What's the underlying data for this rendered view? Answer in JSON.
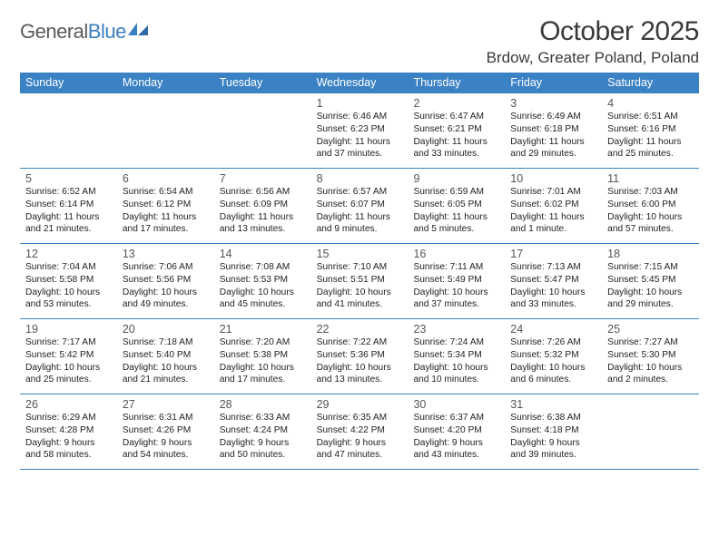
{
  "brand": {
    "part1": "General",
    "part2": "Blue"
  },
  "title": "October 2025",
  "location": "Brdow, Greater Poland, Poland",
  "colors": {
    "header_bg": "#3b82c4",
    "header_text": "#ffffff",
    "rule": "#3b82c4",
    "body_text": "#222222",
    "daynum": "#555555",
    "background": "#ffffff",
    "logo_gray": "#5a5a5a",
    "logo_blue": "#3b7fc4"
  },
  "weekdays": [
    "Sunday",
    "Monday",
    "Tuesday",
    "Wednesday",
    "Thursday",
    "Friday",
    "Saturday"
  ],
  "weeks": [
    [
      null,
      null,
      null,
      {
        "n": "1",
        "sr": "6:46 AM",
        "ss": "6:23 PM",
        "dl": "11 hours and 37 minutes."
      },
      {
        "n": "2",
        "sr": "6:47 AM",
        "ss": "6:21 PM",
        "dl": "11 hours and 33 minutes."
      },
      {
        "n": "3",
        "sr": "6:49 AM",
        "ss": "6:18 PM",
        "dl": "11 hours and 29 minutes."
      },
      {
        "n": "4",
        "sr": "6:51 AM",
        "ss": "6:16 PM",
        "dl": "11 hours and 25 minutes."
      }
    ],
    [
      {
        "n": "5",
        "sr": "6:52 AM",
        "ss": "6:14 PM",
        "dl": "11 hours and 21 minutes."
      },
      {
        "n": "6",
        "sr": "6:54 AM",
        "ss": "6:12 PM",
        "dl": "11 hours and 17 minutes."
      },
      {
        "n": "7",
        "sr": "6:56 AM",
        "ss": "6:09 PM",
        "dl": "11 hours and 13 minutes."
      },
      {
        "n": "8",
        "sr": "6:57 AM",
        "ss": "6:07 PM",
        "dl": "11 hours and 9 minutes."
      },
      {
        "n": "9",
        "sr": "6:59 AM",
        "ss": "6:05 PM",
        "dl": "11 hours and 5 minutes."
      },
      {
        "n": "10",
        "sr": "7:01 AM",
        "ss": "6:02 PM",
        "dl": "11 hours and 1 minute."
      },
      {
        "n": "11",
        "sr": "7:03 AM",
        "ss": "6:00 PM",
        "dl": "10 hours and 57 minutes."
      }
    ],
    [
      {
        "n": "12",
        "sr": "7:04 AM",
        "ss": "5:58 PM",
        "dl": "10 hours and 53 minutes."
      },
      {
        "n": "13",
        "sr": "7:06 AM",
        "ss": "5:56 PM",
        "dl": "10 hours and 49 minutes."
      },
      {
        "n": "14",
        "sr": "7:08 AM",
        "ss": "5:53 PM",
        "dl": "10 hours and 45 minutes."
      },
      {
        "n": "15",
        "sr": "7:10 AM",
        "ss": "5:51 PM",
        "dl": "10 hours and 41 minutes."
      },
      {
        "n": "16",
        "sr": "7:11 AM",
        "ss": "5:49 PM",
        "dl": "10 hours and 37 minutes."
      },
      {
        "n": "17",
        "sr": "7:13 AM",
        "ss": "5:47 PM",
        "dl": "10 hours and 33 minutes."
      },
      {
        "n": "18",
        "sr": "7:15 AM",
        "ss": "5:45 PM",
        "dl": "10 hours and 29 minutes."
      }
    ],
    [
      {
        "n": "19",
        "sr": "7:17 AM",
        "ss": "5:42 PM",
        "dl": "10 hours and 25 minutes."
      },
      {
        "n": "20",
        "sr": "7:18 AM",
        "ss": "5:40 PM",
        "dl": "10 hours and 21 minutes."
      },
      {
        "n": "21",
        "sr": "7:20 AM",
        "ss": "5:38 PM",
        "dl": "10 hours and 17 minutes."
      },
      {
        "n": "22",
        "sr": "7:22 AM",
        "ss": "5:36 PM",
        "dl": "10 hours and 13 minutes."
      },
      {
        "n": "23",
        "sr": "7:24 AM",
        "ss": "5:34 PM",
        "dl": "10 hours and 10 minutes."
      },
      {
        "n": "24",
        "sr": "7:26 AM",
        "ss": "5:32 PM",
        "dl": "10 hours and 6 minutes."
      },
      {
        "n": "25",
        "sr": "7:27 AM",
        "ss": "5:30 PM",
        "dl": "10 hours and 2 minutes."
      }
    ],
    [
      {
        "n": "26",
        "sr": "6:29 AM",
        "ss": "4:28 PM",
        "dl": "9 hours and 58 minutes."
      },
      {
        "n": "27",
        "sr": "6:31 AM",
        "ss": "4:26 PM",
        "dl": "9 hours and 54 minutes."
      },
      {
        "n": "28",
        "sr": "6:33 AM",
        "ss": "4:24 PM",
        "dl": "9 hours and 50 minutes."
      },
      {
        "n": "29",
        "sr": "6:35 AM",
        "ss": "4:22 PM",
        "dl": "9 hours and 47 minutes."
      },
      {
        "n": "30",
        "sr": "6:37 AM",
        "ss": "4:20 PM",
        "dl": "9 hours and 43 minutes."
      },
      {
        "n": "31",
        "sr": "6:38 AM",
        "ss": "4:18 PM",
        "dl": "9 hours and 39 minutes."
      },
      null
    ]
  ],
  "labels": {
    "sunrise": "Sunrise: ",
    "sunset": "Sunset: ",
    "daylight": "Daylight: "
  }
}
